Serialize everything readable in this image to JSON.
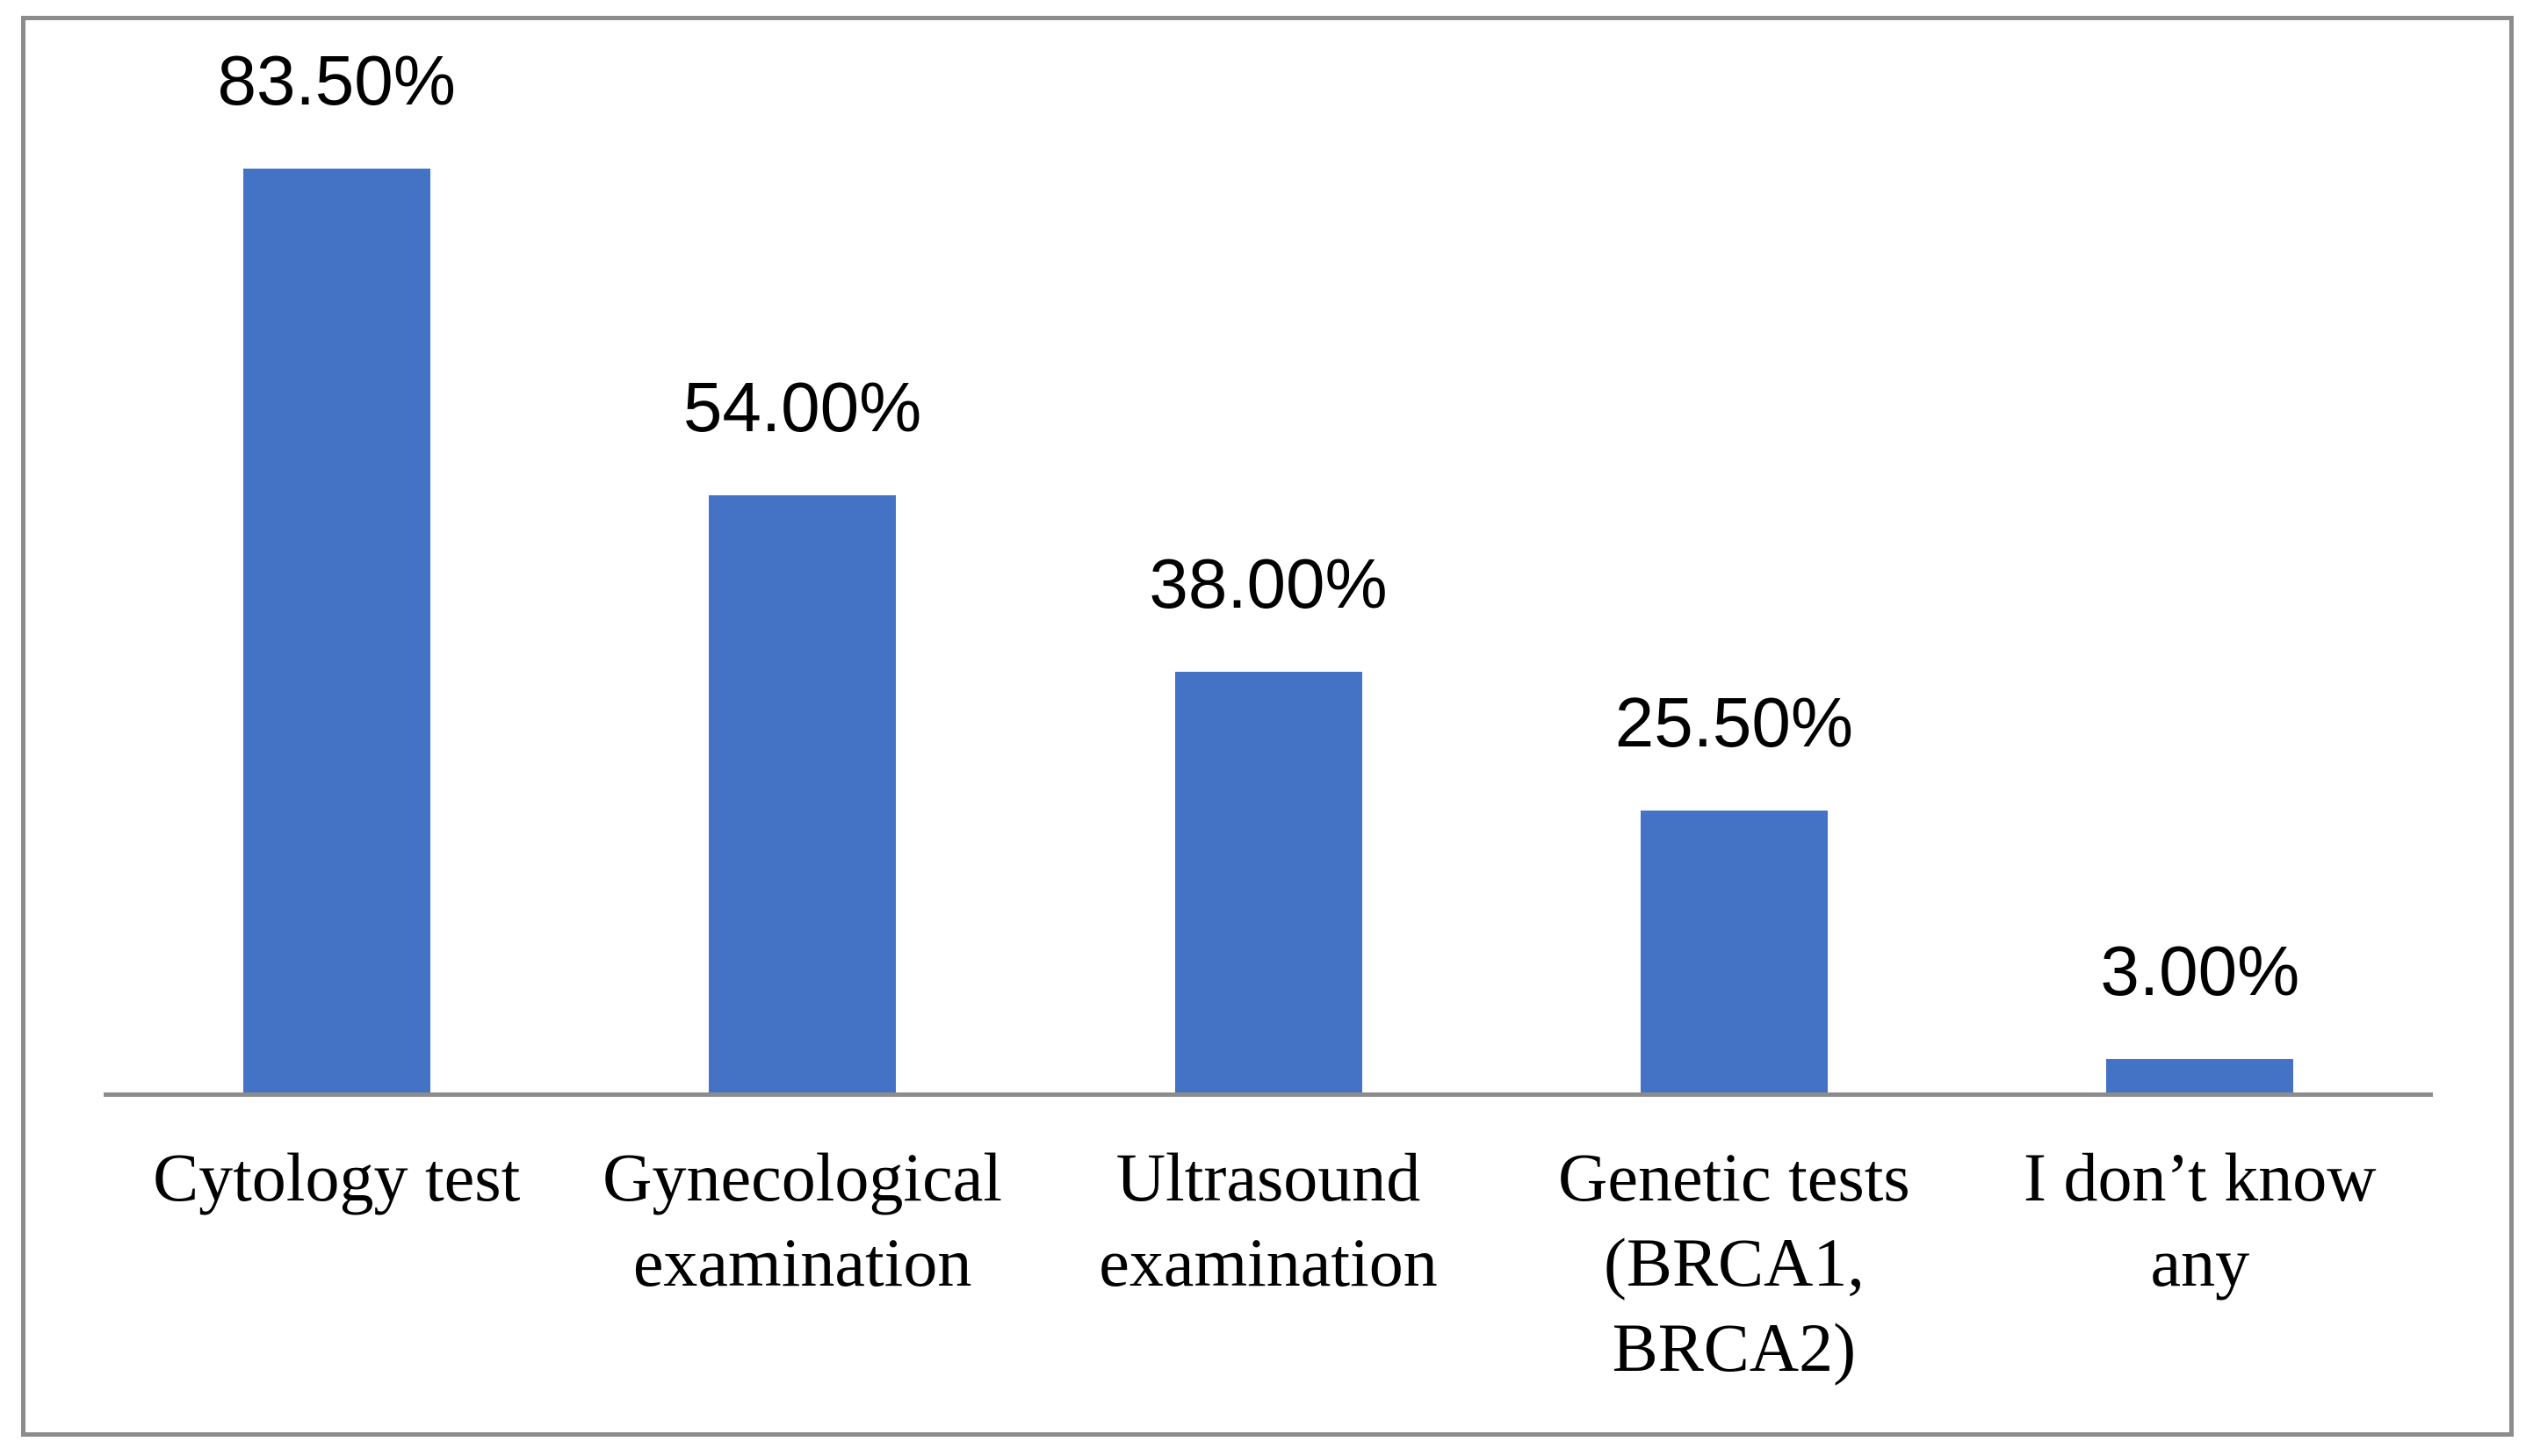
{
  "chart_data": {
    "type": "bar",
    "title": "",
    "xlabel": "",
    "ylabel": "",
    "legend": "none",
    "grid": false,
    "value_unit": "percent",
    "categories": [
      "Cytology test",
      "Gynecological examination",
      "Ultrasound examination",
      "Genetic tests (BRCA1, BRCA2)",
      "I don’t know any"
    ],
    "category_display_lines": [
      [
        "Cytology test"
      ],
      [
        "Gynecological",
        "examination"
      ],
      [
        "Ultrasound",
        "examination"
      ],
      [
        "Genetic tests",
        "(BRCA1,",
        "BRCA2)"
      ],
      [
        "I don’t know",
        "any"
      ]
    ],
    "values": [
      83.5,
      54.0,
      38.0,
      25.5,
      3.0
    ],
    "value_labels": [
      "83.50%",
      "54.00%",
      "38.00%",
      "25.50%",
      "3.00%"
    ],
    "colors": {
      "bar_fill": "#4472C4",
      "axis_line": "#8C8C8C",
      "chart_border": "#8C8C8C",
      "label_text": "#000000",
      "background": "#FFFFFF"
    }
  }
}
